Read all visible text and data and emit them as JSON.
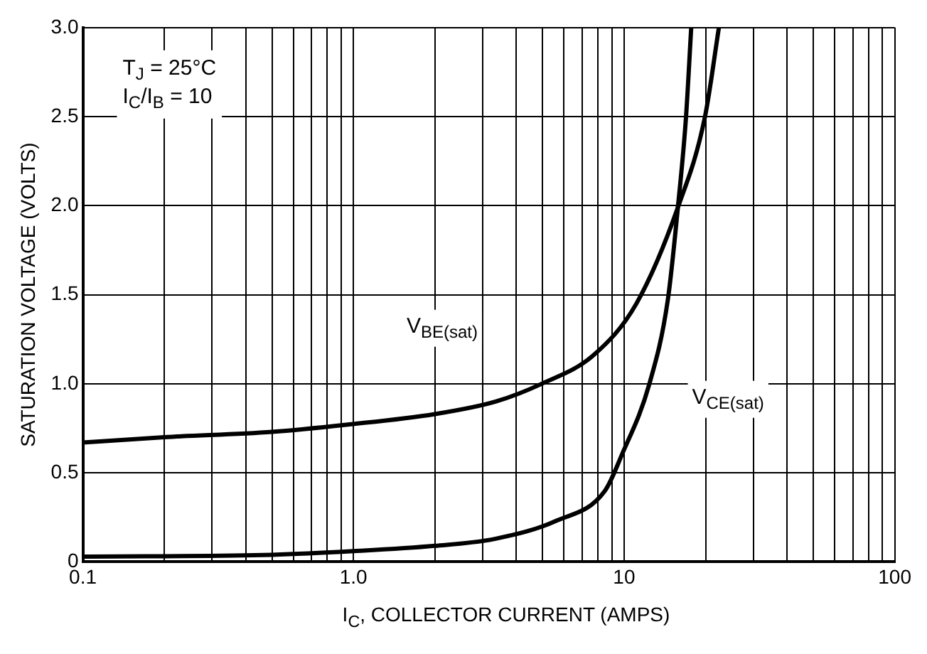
{
  "chart_data": {
    "type": "line",
    "xlabel": "I$_{C}$, COLLECTOR CURRENT (AMPS)",
    "ylabel": "SATURATION VOLTAGE (VOLTS)",
    "log": "x",
    "xlim": [
      0.1,
      100
    ],
    "xticks": [
      0.1,
      {
        "value": 0.2,
        "label": null
      },
      {
        "value": 0.3,
        "label": null
      },
      {
        "value": 0.4,
        "label": null
      },
      {
        "value": 0.5,
        "label": null
      },
      {
        "value": 0.6,
        "label": null
      },
      {
        "value": 0.7,
        "label": null
      },
      {
        "value": 0.8,
        "label": null
      },
      {
        "value": 0.9,
        "label": null
      },
      {
        "value": 1,
        "label": "1.0"
      },
      {
        "value": 2,
        "label": null
      },
      {
        "value": 3,
        "label": null
      },
      {
        "value": 4,
        "label": null
      },
      {
        "value": 5,
        "label": null
      },
      {
        "value": 6,
        "label": null
      },
      {
        "value": 7,
        "label": null
      },
      {
        "value": 8,
        "label": null
      },
      {
        "value": 9,
        "label": null
      },
      10,
      {
        "value": 20,
        "label": null
      },
      {
        "value": 30,
        "label": null
      },
      {
        "value": 40,
        "label": null
      },
      {
        "value": 50,
        "label": null
      },
      {
        "value": 60,
        "label": null
      },
      {
        "value": 70,
        "label": null
      },
      {
        "value": 80,
        "label": null
      },
      {
        "value": 90,
        "label": null
      },
      100
    ],
    "ylim": [
      0,
      3.0
    ],
    "yticks": [
      0,
      0.5,
      {
        "value": 1,
        "label": "1.0"
      },
      1.5,
      {
        "value": 2,
        "label": "2.0"
      },
      2.5,
      {
        "value": 3,
        "label": "3.0"
      }
    ],
    "grid": true,
    "legend": false,
    "marker": "none",
    "line_style": "solid",
    "series": [
      {
        "name": "V$_{BE(sat)}$",
        "color": "#000000",
        "x": [
          0.1,
          0.2,
          0.5,
          0.94,
          2,
          3.35,
          4.96,
          7.7,
          11.1,
          15.8,
          19.9,
          22.4
        ],
        "values": [
          0.67,
          0.7,
          0.73,
          0.77,
          0.83,
          0.9,
          1.0,
          1.16,
          1.45,
          1.99,
          2.5,
          3.0
        ]
      },
      {
        "name": "V$_{CE(sat)}$",
        "color": "#000000",
        "x": [
          0.1,
          0.5,
          1,
          2,
          3.35,
          5.6,
          8.5,
          9.8,
          12.4,
          14.5,
          15.8,
          16.9,
          17.7
        ],
        "values": [
          0.03,
          0.04,
          0.06,
          0.09,
          0.13,
          0.23,
          0.4,
          0.6,
          1.0,
          1.47,
          1.99,
          2.48,
          3.0
        ]
      }
    ],
    "annotations": [
      "T$_{J}$ = 25°C",
      "I$_{C}$/I$_{B}$ = 10"
    ]
  }
}
